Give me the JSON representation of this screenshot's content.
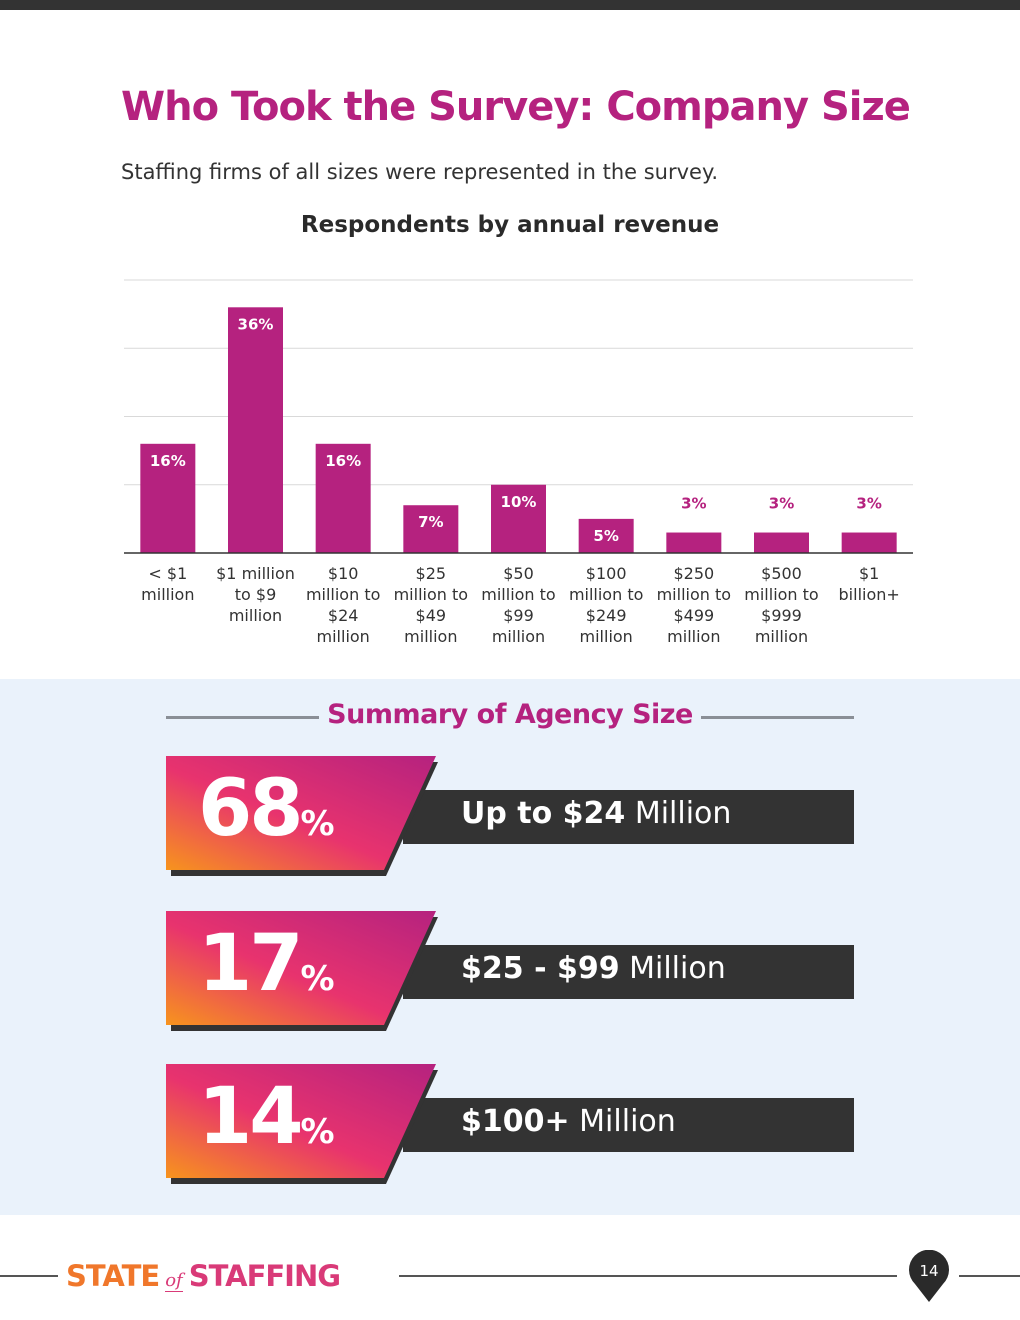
{
  "page": {
    "title": "Who Took the Survey: Company Size",
    "subtitle": "Staffing firms of all sizes were represented in the survey.",
    "page_number": "14"
  },
  "chart_data": {
    "type": "bar",
    "title": "Respondents by annual revenue",
    "categories": [
      [
        "< $1",
        "million"
      ],
      [
        "$1 million",
        "to $9",
        "million"
      ],
      [
        "$10",
        "million to",
        "$24",
        "million"
      ],
      [
        "$25",
        "million to",
        "$49",
        "million"
      ],
      [
        "$50",
        "million to",
        "$99",
        "million"
      ],
      [
        "$100",
        "million to",
        "$249",
        "million"
      ],
      [
        "$250",
        "million to",
        "$499",
        "million"
      ],
      [
        "$500",
        "million to",
        "$999",
        "million"
      ],
      [
        "$1",
        "billion+"
      ]
    ],
    "values": [
      16,
      36,
      16,
      7,
      10,
      5,
      3,
      3,
      3
    ],
    "value_labels": [
      "16%",
      "36%",
      "16%",
      "7%",
      "10%",
      "5%",
      "3%",
      "3%",
      "3%"
    ],
    "ylim": [
      0,
      40
    ],
    "grid": true,
    "bar_color": "#b5227f"
  },
  "summary": {
    "heading": "Summary of Agency Size",
    "rows": [
      {
        "pct": "68",
        "sym": "%",
        "bold": "Up to $24",
        "rest": " Million"
      },
      {
        "pct": "17",
        "sym": "%",
        "bold": "$25 - $99",
        "rest": " Million"
      },
      {
        "pct": "14",
        "sym": "%",
        "bold": "$100+",
        "rest": " Million"
      }
    ]
  },
  "footer": {
    "logo_state": "STATE",
    "logo_of": "of",
    "logo_staffing": "STAFFING"
  },
  "colors": {
    "accent": "#b5227f",
    "gradient_start": "#f7941d",
    "gradient_mid": "#e8336e",
    "gradient_end": "#b5227f",
    "dark_band": "#333333",
    "summary_bg": "#eaf2fb"
  }
}
